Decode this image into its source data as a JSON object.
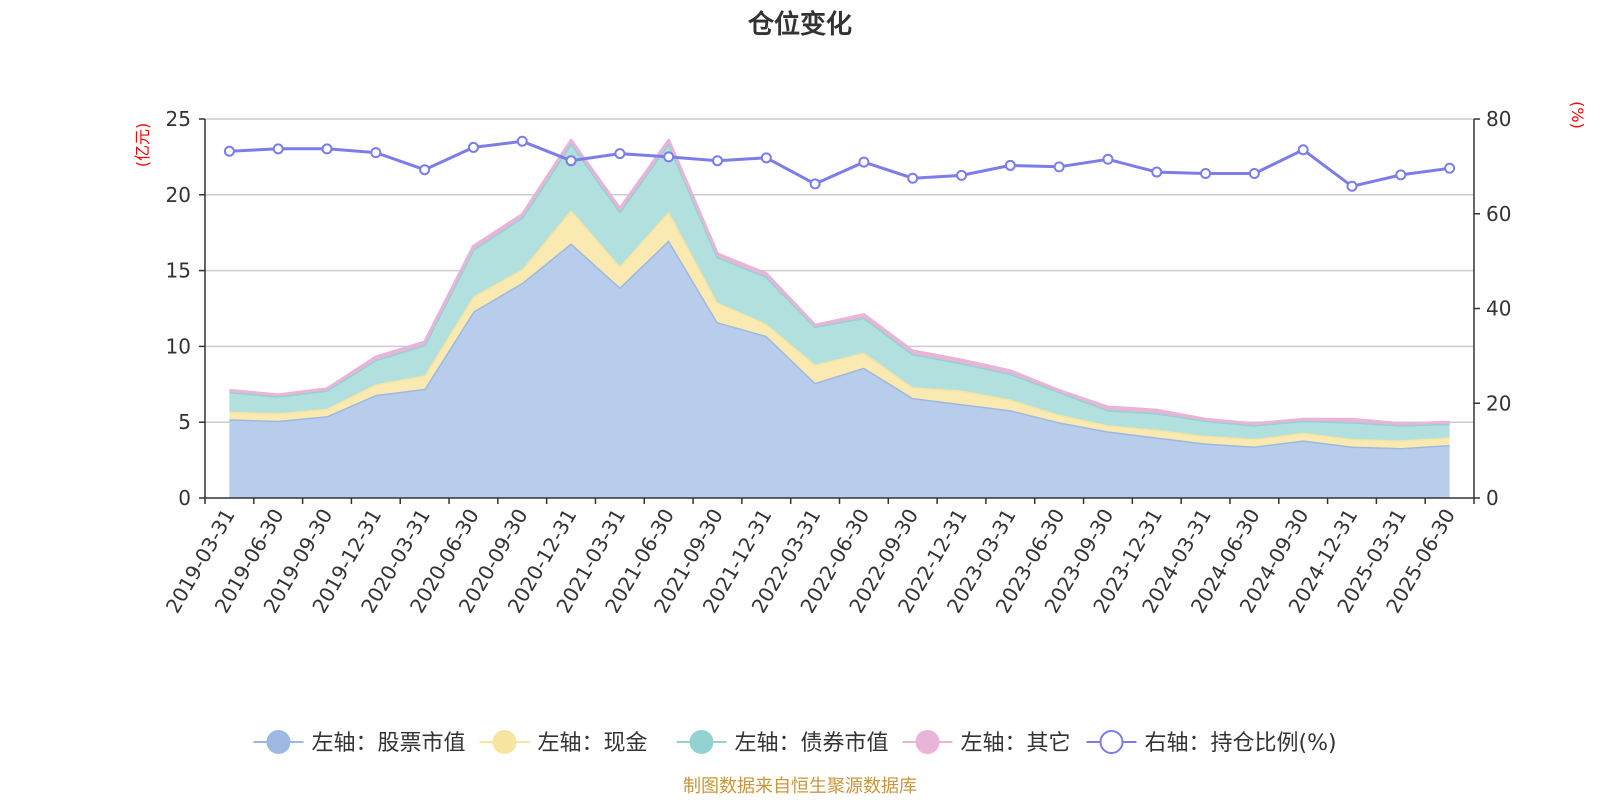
{
  "chart_data": {
    "type": "area",
    "title": "仓位变化",
    "source_note": "制图数据来自恒生聚源数据库",
    "left_axis": {
      "unit": "(亿元)",
      "ylim": [
        0,
        25
      ],
      "ticks": [
        "0",
        "5",
        "10",
        "15",
        "20",
        "25"
      ]
    },
    "right_axis": {
      "unit": "(%)",
      "ylim": [
        0,
        80
      ],
      "ticks": [
        "0",
        "20",
        "40",
        "60",
        "80"
      ]
    },
    "grid": true,
    "legend_position": "bottom",
    "categories": [
      "2019-03-31",
      "2019-06-30",
      "2019-09-30",
      "2019-12-31",
      "2020-03-31",
      "2020-06-30",
      "2020-09-30",
      "2020-12-31",
      "2021-03-31",
      "2021-06-30",
      "2021-09-30",
      "2021-12-31",
      "2022-03-31",
      "2022-06-30",
      "2022-09-30",
      "2022-12-31",
      "2023-03-31",
      "2023-06-30",
      "2023-09-30",
      "2023-12-31",
      "2024-03-31",
      "2024-06-30",
      "2024-09-30",
      "2024-12-31",
      "2025-03-31",
      "2025-06-30"
    ],
    "stacked_series": [
      {
        "name": "左轴：股票市值",
        "axis": "left",
        "color": "#9db9e1",
        "fill": "#b8cceb",
        "values": [
          5.2,
          5.1,
          5.4,
          6.8,
          7.2,
          12.3,
          14.2,
          16.8,
          13.9,
          17.0,
          11.6,
          10.7,
          7.6,
          8.6,
          6.6,
          6.2,
          5.8,
          5.0,
          4.4,
          4.0,
          3.6,
          3.4,
          3.8,
          3.4,
          3.3,
          3.5
        ]
      },
      {
        "name": "左轴：现金",
        "axis": "left",
        "color": "#f7e4a0",
        "fill": "#faeab2",
        "values": [
          0.5,
          0.5,
          0.5,
          0.7,
          0.9,
          1.0,
          0.9,
          2.2,
          1.4,
          1.9,
          1.3,
          0.8,
          1.2,
          1.0,
          0.7,
          0.9,
          0.7,
          0.5,
          0.4,
          0.5,
          0.5,
          0.5,
          0.5,
          0.5,
          0.5,
          0.5
        ]
      },
      {
        "name": "左轴：债券市值",
        "axis": "left",
        "color": "#94d2d2",
        "fill": "#b2e0df",
        "values": [
          1.3,
          1.1,
          1.2,
          1.6,
          2.0,
          3.1,
          3.4,
          4.4,
          3.6,
          4.5,
          3.0,
          3.1,
          2.5,
          2.3,
          2.2,
          1.8,
          1.7,
          1.5,
          1.0,
          1.1,
          1.0,
          0.9,
          0.8,
          1.1,
          1.0,
          0.9
        ]
      },
      {
        "name": "左轴：其它",
        "axis": "left",
        "color": "#e8b4d8",
        "fill": "#e8b4d8",
        "values": [
          0.1,
          0.1,
          0.1,
          0.2,
          0.2,
          0.2,
          0.2,
          0.2,
          0.2,
          0.2,
          0.2,
          0.2,
          0.1,
          0.2,
          0.2,
          0.2,
          0.2,
          0.1,
          0.2,
          0.2,
          0.1,
          0.1,
          0.1,
          0.2,
          0.1,
          0.1
        ]
      }
    ],
    "line_series": {
      "name": "右轴：持仓比例(%)",
      "axis": "right",
      "color": "#7b7de8",
      "values": [
        73.2,
        73.7,
        73.7,
        72.9,
        69.3,
        74.0,
        75.3,
        71.2,
        72.7,
        72.0,
        71.2,
        71.8,
        66.3,
        70.9,
        67.5,
        68.1,
        70.2,
        69.9,
        71.5,
        68.8,
        68.5,
        68.5,
        73.5,
        65.8,
        68.2,
        69.6
      ]
    }
  }
}
